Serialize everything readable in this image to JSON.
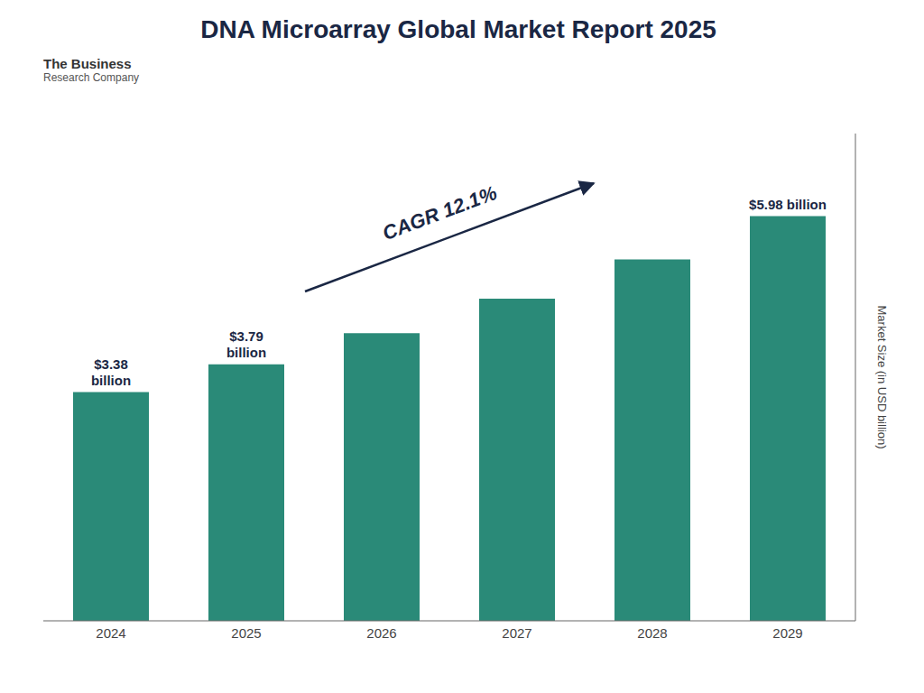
{
  "chart_data": {
    "type": "bar",
    "title": "DNA Microarray Global Market Report 2025",
    "categories": [
      "2024",
      "2025",
      "2026",
      "2027",
      "2028",
      "2029"
    ],
    "values": [
      3.38,
      3.79,
      4.25,
      4.76,
      5.34,
      5.98
    ],
    "value_labels": [
      "$3.38\nbillion",
      "$3.79\nbillion",
      null,
      null,
      null,
      "$5.98 billion"
    ],
    "color": "#2a8a78",
    "ylabel": "Market Size (in USD billion)",
    "ylim": [
      0,
      7.2
    ],
    "tick_labels": "x",
    "grid": false,
    "annotations": [
      "CAGR 12.1%",
      "The Business",
      "Research Company"
    ]
  }
}
